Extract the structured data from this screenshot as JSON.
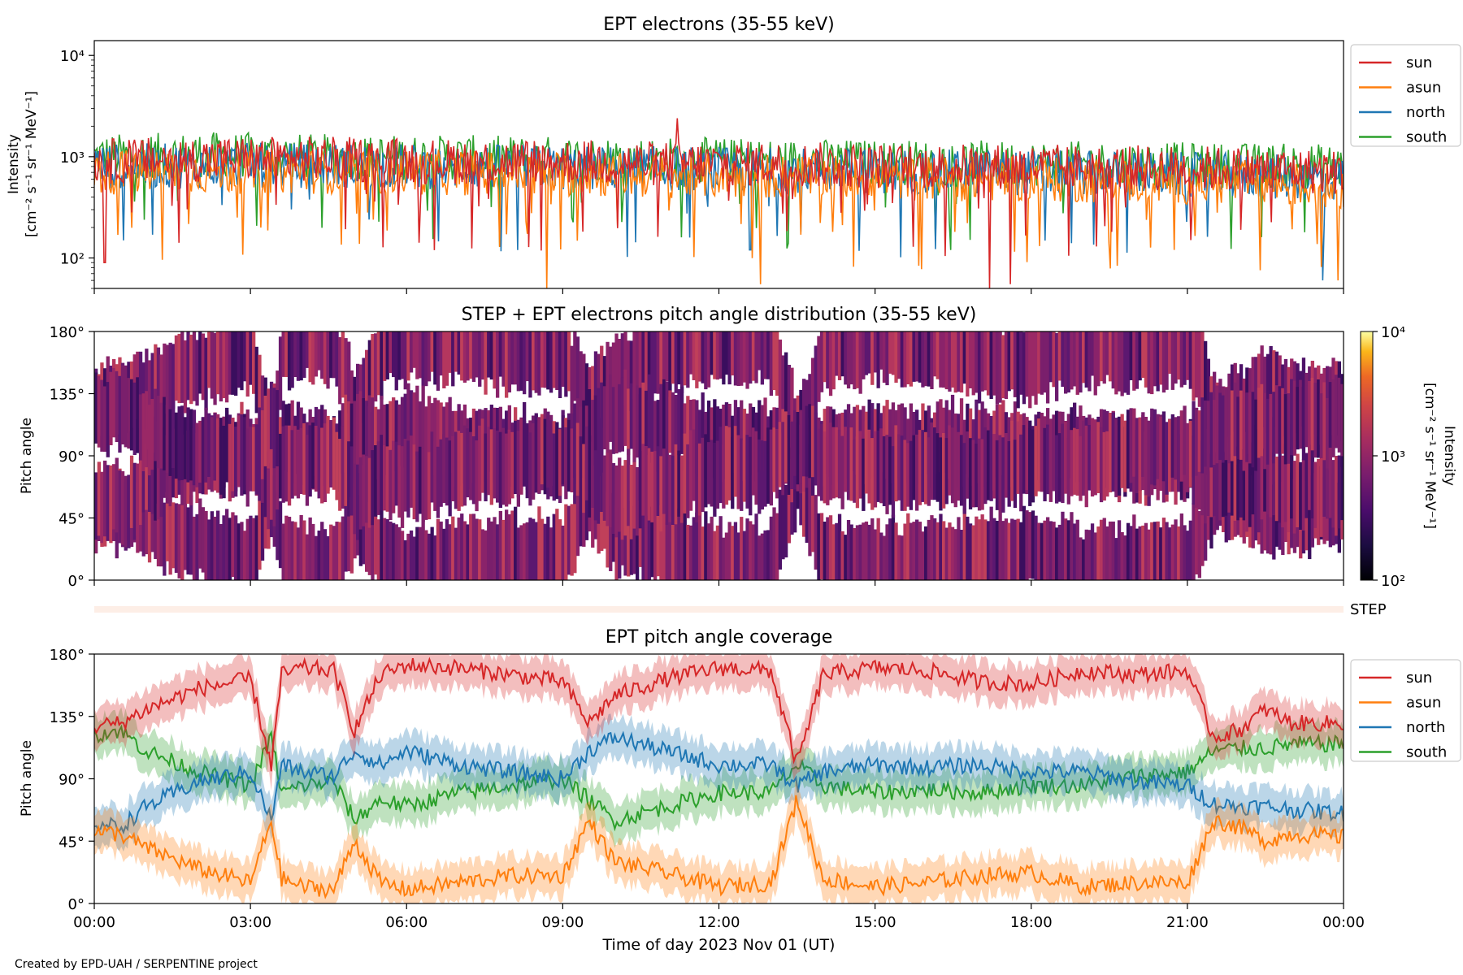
{
  "figure": {
    "credit": "Created by EPD-UAH / SERPENTINE project",
    "xlabel": "Time of day 2023 Nov 01 (UT)",
    "xticks": [
      "00:00",
      "03:00",
      "06:00",
      "09:00",
      "12:00",
      "15:00",
      "18:00",
      "21:00",
      "00:00"
    ],
    "step_label": "STEP"
  },
  "colors": {
    "sun": "#d62728",
    "asun": "#ff7f0e",
    "north": "#1f77b4",
    "south": "#2ca02c"
  },
  "chart_data": [
    {
      "type": "line",
      "title": "EPT electrons (35-55 keV)",
      "ylabel": "Intensity",
      "ylabel_units": "[cm⁻² s⁻¹ sr⁻¹ MeV⁻¹]",
      "yscale": "log",
      "ylim": [
        50,
        14000
      ],
      "yticks": [
        "10²",
        "10³",
        "10⁴"
      ],
      "x_range_hours": [
        0,
        24
      ],
      "legend_position": "outside-right",
      "series": [
        {
          "name": "sun",
          "color": "#d62728",
          "typical": [
            900,
            950,
            950,
            900,
            900,
            850,
            850,
            800,
            800,
            780,
            760,
            700
          ],
          "spikes": [
            {
              "x": 11.2,
              "y": 2400
            },
            {
              "x": 0.2,
              "y": 90
            },
            {
              "x": 17.2,
              "y": 50
            },
            {
              "x": 17.6,
              "y": 55
            }
          ]
        },
        {
          "name": "asun",
          "color": "#ff7f0e",
          "typical": [
            700,
            720,
            720,
            700,
            680,
            650,
            640,
            620,
            600,
            580,
            560,
            500
          ],
          "spikes": [
            {
              "x": 8.7,
              "y": 50
            },
            {
              "x": 12.8,
              "y": 55
            },
            {
              "x": 23.9,
              "y": 60
            }
          ]
        },
        {
          "name": "north",
          "color": "#1f77b4",
          "typical": [
            800,
            820,
            820,
            800,
            780,
            760,
            740,
            720,
            700,
            680,
            650,
            600
          ],
          "spikes": [
            {
              "x": 12.6,
              "y": 120
            },
            {
              "x": 23.6,
              "y": 60
            }
          ]
        },
        {
          "name": "south",
          "color": "#2ca02c",
          "typical": [
            1000,
            1050,
            1000,
            980,
            960,
            940,
            900,
            880,
            860,
            840,
            820,
            800
          ],
          "spikes": []
        }
      ]
    },
    {
      "type": "heatmap",
      "title": "STEP + EPT electrons pitch angle distribution (35-55 keV)",
      "ylabel": "Pitch angle",
      "ylim": [
        0,
        180
      ],
      "yticks": [
        "0°",
        "45°",
        "90°",
        "135°",
        "180°"
      ],
      "x_range_hours": [
        0,
        24
      ],
      "colorbar": {
        "label": "Intensity",
        "label_units": "[cm⁻² s⁻¹ sr⁻¹ MeV⁻¹]",
        "scale": "log",
        "range": [
          100,
          10000
        ],
        "ticks": [
          "10²",
          "10³",
          "10⁴"
        ],
        "colormap": "inferno"
      },
      "coverage_source": "EPT pitch angle coverage (sun, asun, north, south centers ± widths)"
    },
    {
      "type": "line",
      "title": "EPT pitch angle coverage",
      "ylabel": "Pitch angle",
      "ylim": [
        0,
        180
      ],
      "yticks": [
        "0°",
        "45°",
        "90°",
        "135°",
        "180°"
      ],
      "x_range_hours": [
        0,
        24
      ],
      "legend_position": "outside-right",
      "series": [
        {
          "name": "sun",
          "color": "#d62728",
          "x": [
            0,
            0.5,
            1,
            2,
            3,
            3.4,
            3.6,
            4,
            4.6,
            5,
            5.5,
            6,
            7,
            8,
            9,
            9.5,
            10,
            11,
            12,
            13,
            13.5,
            14,
            15,
            16,
            17,
            18,
            19,
            20,
            21,
            21.5,
            22,
            22.5,
            23,
            24
          ],
          "y": [
            128,
            130,
            140,
            155,
            162,
            100,
            165,
            170,
            168,
            125,
            165,
            172,
            170,
            165,
            160,
            130,
            150,
            162,
            170,
            168,
            100,
            165,
            170,
            168,
            160,
            158,
            168,
            165,
            168,
            120,
            125,
            140,
            130,
            130
          ]
        },
        {
          "name": "asun",
          "color": "#ff7f0e",
          "x": [
            0,
            0.5,
            1,
            2,
            3,
            3.4,
            3.6,
            4,
            4.6,
            5,
            5.5,
            6,
            7,
            8,
            9,
            9.5,
            10,
            11,
            12,
            13,
            13.5,
            14,
            15,
            16,
            17,
            18,
            19,
            20,
            21,
            21.5,
            22,
            22.5,
            23,
            24
          ],
          "y": [
            52,
            50,
            40,
            25,
            15,
            60,
            18,
            12,
            10,
            45,
            15,
            10,
            15,
            20,
            20,
            60,
            30,
            22,
            12,
            15,
            75,
            18,
            12,
            15,
            20,
            22,
            12,
            15,
            15,
            60,
            55,
            45,
            50,
            48
          ]
        },
        {
          "name": "north",
          "color": "#1f77b4",
          "x": [
            0,
            0.5,
            1,
            2,
            3,
            3.4,
            3.6,
            4,
            4.6,
            5,
            5.5,
            6,
            7,
            8,
            9,
            9.5,
            10,
            11,
            12,
            13,
            13.5,
            14,
            15,
            16,
            17,
            18,
            19,
            20,
            21,
            21.5,
            22,
            22.5,
            23,
            24
          ],
          "y": [
            58,
            55,
            70,
            88,
            95,
            60,
            100,
            95,
            92,
            110,
            100,
            110,
            100,
            95,
            90,
            110,
            120,
            110,
            100,
            100,
            85,
            95,
            100,
            98,
            100,
            95,
            95,
            88,
            85,
            72,
            70,
            70,
            68,
            65
          ]
        },
        {
          "name": "south",
          "color": "#2ca02c",
          "x": [
            0,
            0.5,
            1,
            2,
            3,
            3.4,
            3.6,
            4,
            4.6,
            5,
            5.5,
            6,
            7,
            8,
            9,
            9.5,
            10,
            11,
            12,
            13,
            13.5,
            14,
            15,
            16,
            17,
            18,
            19,
            20,
            21,
            21.5,
            22,
            22.5,
            23,
            24
          ],
          "y": [
            122,
            125,
            110,
            95,
            85,
            120,
            80,
            85,
            88,
            60,
            75,
            70,
            80,
            85,
            90,
            75,
            60,
            70,
            80,
            80,
            100,
            85,
            80,
            82,
            80,
            85,
            85,
            92,
            95,
            110,
            112,
            112,
            115,
            115
          ]
        }
      ]
    }
  ]
}
